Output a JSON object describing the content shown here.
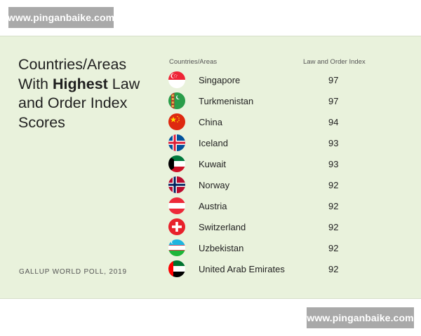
{
  "watermark": {
    "top_text": "www.pinganbaike.com",
    "bottom_text": "www.pinganbaike.com"
  },
  "chart_data": {
    "type": "table",
    "title_before": "Countries/Areas With ",
    "title_highlight": "Highest",
    "title_after": " Law and Order Index Scores",
    "source": "GALLUP WORLD POLL, 2019",
    "columns": [
      "Countries/Areas",
      "Law and Order Index"
    ],
    "rows": [
      {
        "country": "Singapore",
        "score": "97",
        "flag_icon": "singapore-flag-icon"
      },
      {
        "country": "Turkmenistan",
        "score": "97",
        "flag_icon": "turkmenistan-flag-icon"
      },
      {
        "country": "China",
        "score": "94",
        "flag_icon": "china-flag-icon"
      },
      {
        "country": "Iceland",
        "score": "93",
        "flag_icon": "iceland-flag-icon"
      },
      {
        "country": "Kuwait",
        "score": "93",
        "flag_icon": "kuwait-flag-icon"
      },
      {
        "country": "Norway",
        "score": "92",
        "flag_icon": "norway-flag-icon"
      },
      {
        "country": "Austria",
        "score": "92",
        "flag_icon": "austria-flag-icon"
      },
      {
        "country": "Switzerland",
        "score": "92",
        "flag_icon": "switzerland-flag-icon"
      },
      {
        "country": "Uzbekistan",
        "score": "92",
        "flag_icon": "uzbekistan-flag-icon"
      },
      {
        "country": "United Arab Emirates",
        "score": "92",
        "flag_icon": "uae-flag-icon"
      }
    ]
  },
  "colors": {
    "card_background": "#e9f2dc",
    "text": "#222222",
    "watermark_background": "#a9a9a9"
  }
}
